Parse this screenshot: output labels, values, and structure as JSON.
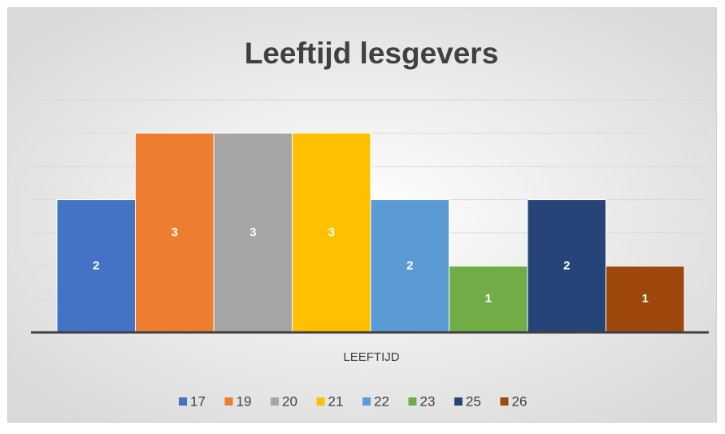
{
  "chart_data": {
    "type": "bar",
    "title": "Leeftijd lesgevers",
    "x_label": "LEEFTIJD",
    "categories": [
      null
    ],
    "series": [
      {
        "name": "17",
        "color": "#4472c4",
        "values": [
          2
        ]
      },
      {
        "name": "19",
        "color": "#ed7d31",
        "values": [
          3
        ]
      },
      {
        "name": "20",
        "color": "#a5a5a5",
        "values": [
          3
        ]
      },
      {
        "name": "21",
        "color": "#ffc000",
        "values": [
          3
        ]
      },
      {
        "name": "22",
        "color": "#5b9bd5",
        "values": [
          2
        ]
      },
      {
        "name": "23",
        "color": "#70ad47",
        "values": [
          1
        ]
      },
      {
        "name": "25",
        "color": "#264478",
        "values": [
          2
        ]
      },
      {
        "name": "26",
        "color": "#9e480e",
        "values": [
          1
        ]
      }
    ],
    "ylim": [
      0,
      3.5
    ],
    "yticks": [
      0,
      0.5,
      1,
      1.5,
      2,
      2.5,
      3,
      3.5
    ],
    "grid": true,
    "legend": "bottom"
  }
}
